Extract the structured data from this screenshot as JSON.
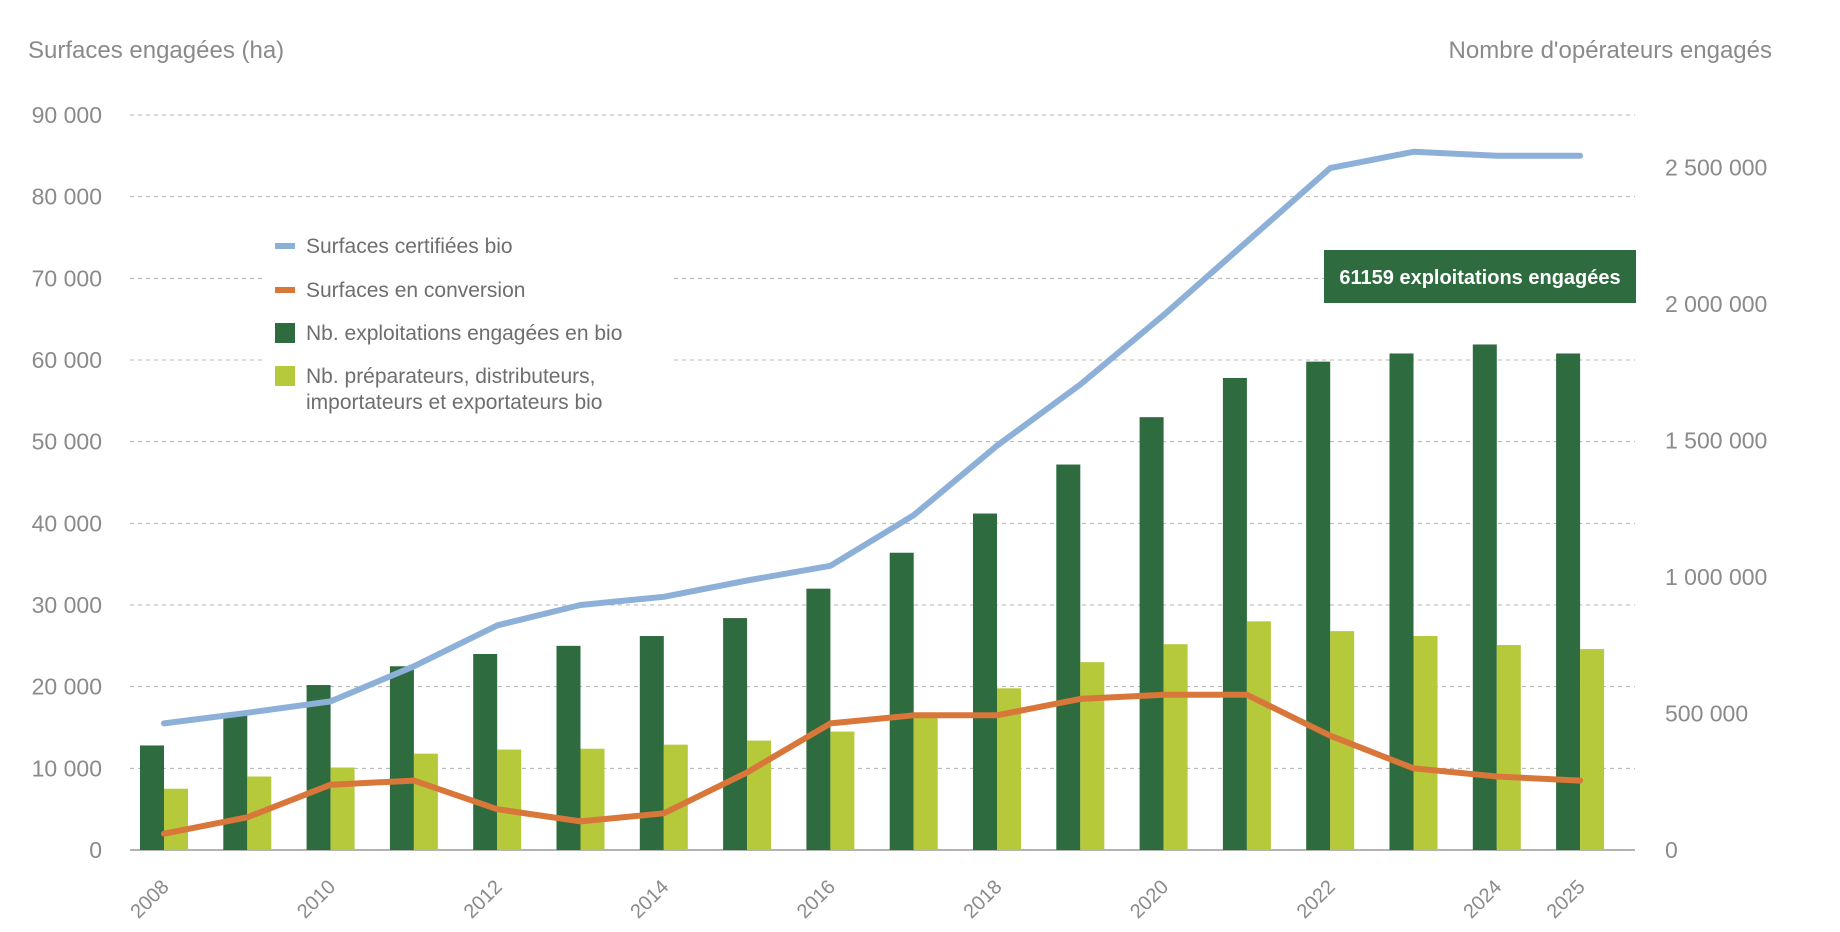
{
  "chart_data": {
    "type": "bar",
    "y_left_label": "Surfaces engagées (ha)",
    "y_right_label": "Nombre d'opérateurs engagés",
    "y_left_range": [
      0,
      90000
    ],
    "y_left_ticks": [
      "0",
      "10 000",
      "20 000",
      "30 000",
      "40 000",
      "50 000",
      "60 000",
      "70 000",
      "80 000",
      "90 000"
    ],
    "y_right_ticks": [
      "0",
      "500 000",
      "1 000 000",
      "1 500 000",
      "2 000 000",
      "2 500 000"
    ],
    "x_tick_labels": [
      "2008",
      "2010",
      "2012",
      "2014",
      "2016",
      "2018",
      "2020",
      "2022",
      "2024",
      "2025"
    ],
    "x": [
      2008,
      2009,
      2010,
      2011,
      2012,
      2013,
      2014,
      2015,
      2016,
      2017,
      2018,
      2019,
      2020,
      2021,
      2022,
      2023,
      2024,
      2025
    ],
    "grid": true,
    "legend_position": "upper-left",
    "series": [
      {
        "name": "Surfaces certifiées bio",
        "type": "line",
        "color": "#8db0d8",
        "values": [
          15500,
          16800,
          18200,
          22500,
          27500,
          30000,
          31000,
          33000,
          34800,
          41000,
          49500,
          57000,
          65500,
          74500,
          83500,
          85500,
          85000,
          85000
        ]
      },
      {
        "name": "Surfaces en conversion",
        "type": "line",
        "color": "#d9763a",
        "values": [
          2000,
          4000,
          8000,
          8500,
          5000,
          3500,
          4500,
          9500,
          15500,
          16500,
          16500,
          18500,
          19000,
          19000,
          14000,
          10000,
          9000,
          8500
        ]
      },
      {
        "name": "Nb. exploitations engagées en bio",
        "type": "bar",
        "color": "#2e6b3f",
        "values": [
          12800,
          16500,
          20200,
          22500,
          24000,
          25000,
          26200,
          28400,
          32000,
          36400,
          41200,
          47200,
          53000,
          57800,
          59800,
          60800,
          61900,
          60800
        ]
      },
      {
        "name": "Nb. préparateurs, distributeurs, importateurs et exportateurs bio",
        "type": "bar",
        "color": "#b5c93b",
        "values": [
          7500,
          9000,
          10100,
          11800,
          12300,
          12400,
          12900,
          13400,
          14500,
          16600,
          19800,
          23000,
          25200,
          28000,
          26800,
          26200,
          25100,
          24600
        ]
      }
    ],
    "legend_labels": [
      "Surfaces certifiées bio",
      "Surfaces en conversion",
      "Nb. exploitations engagées en bio",
      "Nb. préparateurs, distributeurs,",
      "importateurs et exportateurs bio"
    ],
    "annotation": {
      "text": "61159 exploitations engagées",
      "color": "#2e6b3f"
    }
  }
}
